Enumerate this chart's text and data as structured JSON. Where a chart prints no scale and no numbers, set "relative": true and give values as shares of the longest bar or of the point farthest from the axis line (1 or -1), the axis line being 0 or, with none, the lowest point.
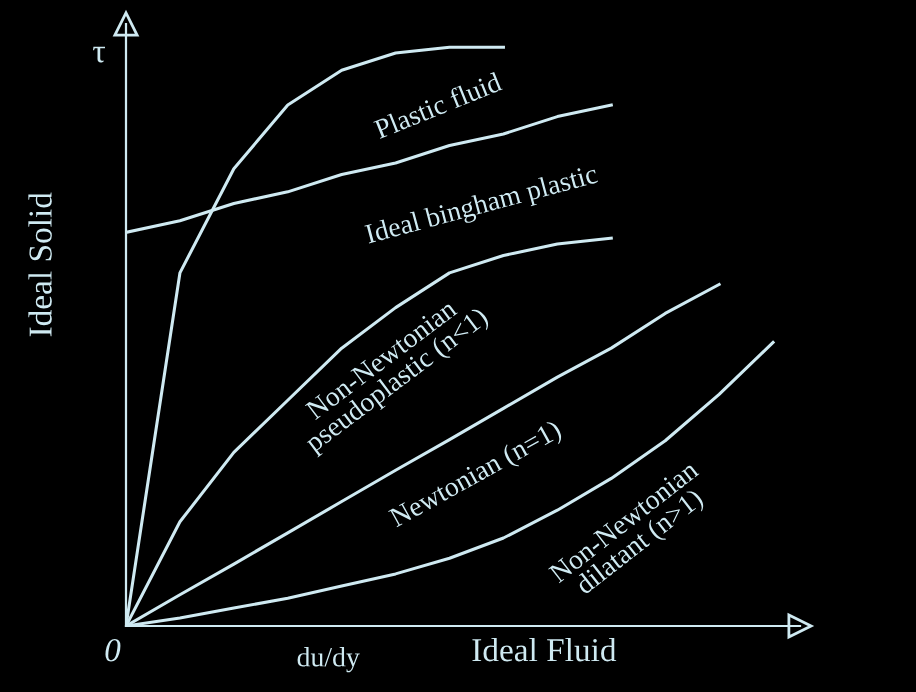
{
  "chart_data": {
    "type": "line",
    "relative": true,
    "xlabel": "du/dy",
    "ylabel": "Ideal Solid",
    "annotations": [
      "τ",
      "0",
      "Ideal Fluid"
    ],
    "categories": [
      null,
      null,
      null,
      null,
      null,
      null,
      null,
      null,
      null,
      null,
      null,
      null,
      null
    ],
    "grid": false,
    "legend": false,
    "marker": "none",
    "line_style": "solid",
    "series": [
      {
        "name": "Plastic fluid",
        "color": "#cfeaf2",
        "values": [
          0,
          0.61,
          0.79,
          0.9,
          0.96,
          0.99,
          1.0,
          1.0,
          null,
          null,
          null,
          null,
          null
        ]
      },
      {
        "name": "Ideal bingham plastic",
        "color": "#cfeaf2",
        "values": [
          0.68,
          0.7,
          0.73,
          0.75,
          0.78,
          0.8,
          0.83,
          0.85,
          0.88,
          0.9,
          null,
          null,
          null
        ]
      },
      {
        "name": "Non-Newtonian\npseudoplastic (n<1)",
        "color": "#cfeaf2",
        "values": [
          0,
          0.18,
          0.3,
          0.39,
          0.48,
          0.55,
          0.61,
          0.64,
          0.66,
          0.67,
          null,
          null,
          null
        ]
      },
      {
        "name": "Newtonian (n=1)",
        "color": "#cfeaf2",
        "values": [
          0,
          0.054,
          0.107,
          0.161,
          0.215,
          0.269,
          0.322,
          0.376,
          0.43,
          0.48,
          0.54,
          0.59,
          null
        ]
      },
      {
        "name": "Non-Newtonian\ndilatant (n>1)",
        "color": "#cfeaf2",
        "values": [
          0,
          0.014,
          0.031,
          0.048,
          0.069,
          0.09,
          0.117,
          0.152,
          0.2,
          0.255,
          0.32,
          0.4,
          0.49
        ]
      }
    ]
  }
}
